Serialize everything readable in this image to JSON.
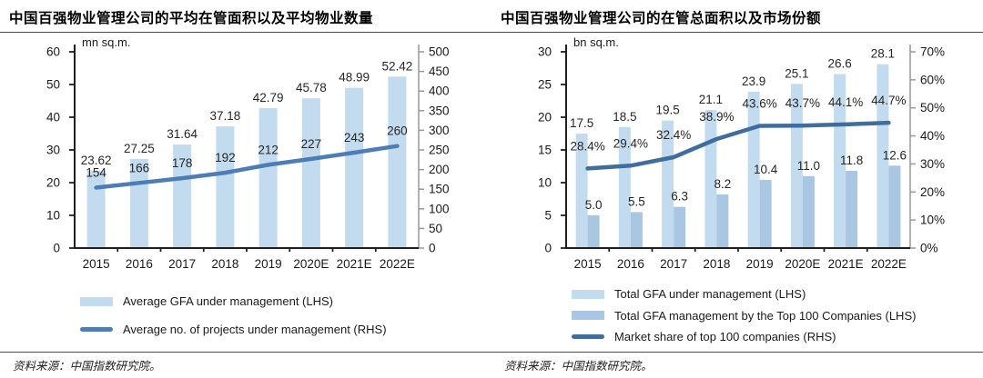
{
  "colors": {
    "bar_light": "#C2DBEF",
    "bar_medium": "#A9C6E3",
    "line_left_chart": "#4C7DB4",
    "line_right_chart": "#3F6D9E",
    "axis_dark": "#1f1f1f",
    "axis_gray": "#999999",
    "value_label": "#262626",
    "rule": "#4a4a4a"
  },
  "panels": [
    {
      "title": "中国百强物业管理公司的平均在管面积以及平均物业数量",
      "source": "资料来源：中国指数研究院。"
    },
    {
      "title": "中国百强物业管理公司的在管总面积以及市场份额",
      "source": "资料来源：中国指数研究院。"
    }
  ],
  "chart_data": [
    {
      "type": "bar",
      "subtype": "combo-bar-line-dual-axis",
      "title": "中国百强物业管理公司的平均在管面积以及平均物业数量",
      "unit_label": "mn sq.m.",
      "categories": [
        "2015",
        "2016",
        "2017",
        "2018",
        "2019",
        "2020E",
        "2021E",
        "2022E"
      ],
      "left_axis": {
        "min": 0,
        "max": 60,
        "tick_labels": [
          "0",
          "10",
          "20",
          "30",
          "40",
          "50",
          "60"
        ]
      },
      "right_axis": {
        "min": 0,
        "max": 500,
        "tick_labels": [
          "0",
          "50",
          "100",
          "150",
          "200",
          "250",
          "300",
          "350",
          "400",
          "450",
          "500"
        ]
      },
      "grid": false,
      "legend_position": "bottom",
      "series": [
        {
          "name": "Average GFA under management (LHS)",
          "kind": "bar",
          "axis": "left",
          "color": "#C2DBEF",
          "values": [
            23.62,
            27.25,
            31.64,
            37.18,
            42.79,
            45.78,
            48.99,
            52.42
          ],
          "labels": [
            "23.62",
            "27.25",
            "31.64",
            "37.18",
            "42.79",
            "45.78",
            "48.99",
            "52.42"
          ]
        },
        {
          "name": "Average no. of projects under management (RHS)",
          "kind": "line",
          "axis": "right",
          "color": "#4C7DB4",
          "label_offset": 12,
          "values": [
            154,
            166,
            178,
            192,
            212,
            227,
            243,
            260
          ],
          "labels": [
            "154",
            "166",
            "178",
            "192",
            "212",
            "227",
            "243",
            "260"
          ]
        }
      ]
    },
    {
      "type": "bar",
      "subtype": "combo-bar-line-dual-axis",
      "title": "中国百强物业管理公司的在管总面积以及市场份额",
      "unit_label": "bn sq.m.",
      "categories": [
        "2015",
        "2016",
        "2017",
        "2018",
        "2019",
        "2020E",
        "2021E",
        "2022E"
      ],
      "left_axis": {
        "min": 0,
        "max": 30,
        "tick_labels": [
          "0",
          "5",
          "10",
          "15",
          "20",
          "25",
          "30"
        ]
      },
      "right_axis": {
        "min": 0,
        "max": 70,
        "tick_labels": [
          "0%",
          "10%",
          "20%",
          "30%",
          "40%",
          "50%",
          "60%",
          "70%"
        ]
      },
      "grid": false,
      "legend_position": "bottom",
      "series": [
        {
          "name": "Total GFA under management (LHS)",
          "kind": "bar",
          "axis": "left",
          "color": "#C2DBEF",
          "values": [
            17.5,
            18.5,
            19.5,
            21.1,
            23.9,
            25.1,
            26.6,
            28.1
          ],
          "labels": [
            "17.5",
            "18.5",
            "19.5",
            "21.1",
            "23.9",
            "25.1",
            "26.6",
            "28.1"
          ]
        },
        {
          "name": "Total GFA management by the Top 100 Companies (LHS)",
          "kind": "bar",
          "axis": "left",
          "color": "#A9C6E3",
          "values": [
            5.0,
            5.5,
            6.3,
            8.2,
            10.4,
            11.0,
            11.8,
            12.6
          ],
          "labels": [
            "5.0",
            "5.5",
            "6.3",
            "8.2",
            "10.4",
            "11.0",
            "11.8",
            "12.6"
          ]
        },
        {
          "name": "Market share of top 100 companies (RHS)",
          "kind": "line",
          "axis": "right",
          "color": "#3F6D9E",
          "label_offset": 20,
          "values": [
            28.4,
            29.4,
            32.4,
            38.9,
            43.6,
            43.7,
            44.1,
            44.7
          ],
          "labels": [
            "28.4%",
            "29.4%",
            "32.4%",
            "38.9%",
            "43.6%",
            "43.7%",
            "44.1%",
            "44.7%"
          ]
        }
      ]
    }
  ]
}
